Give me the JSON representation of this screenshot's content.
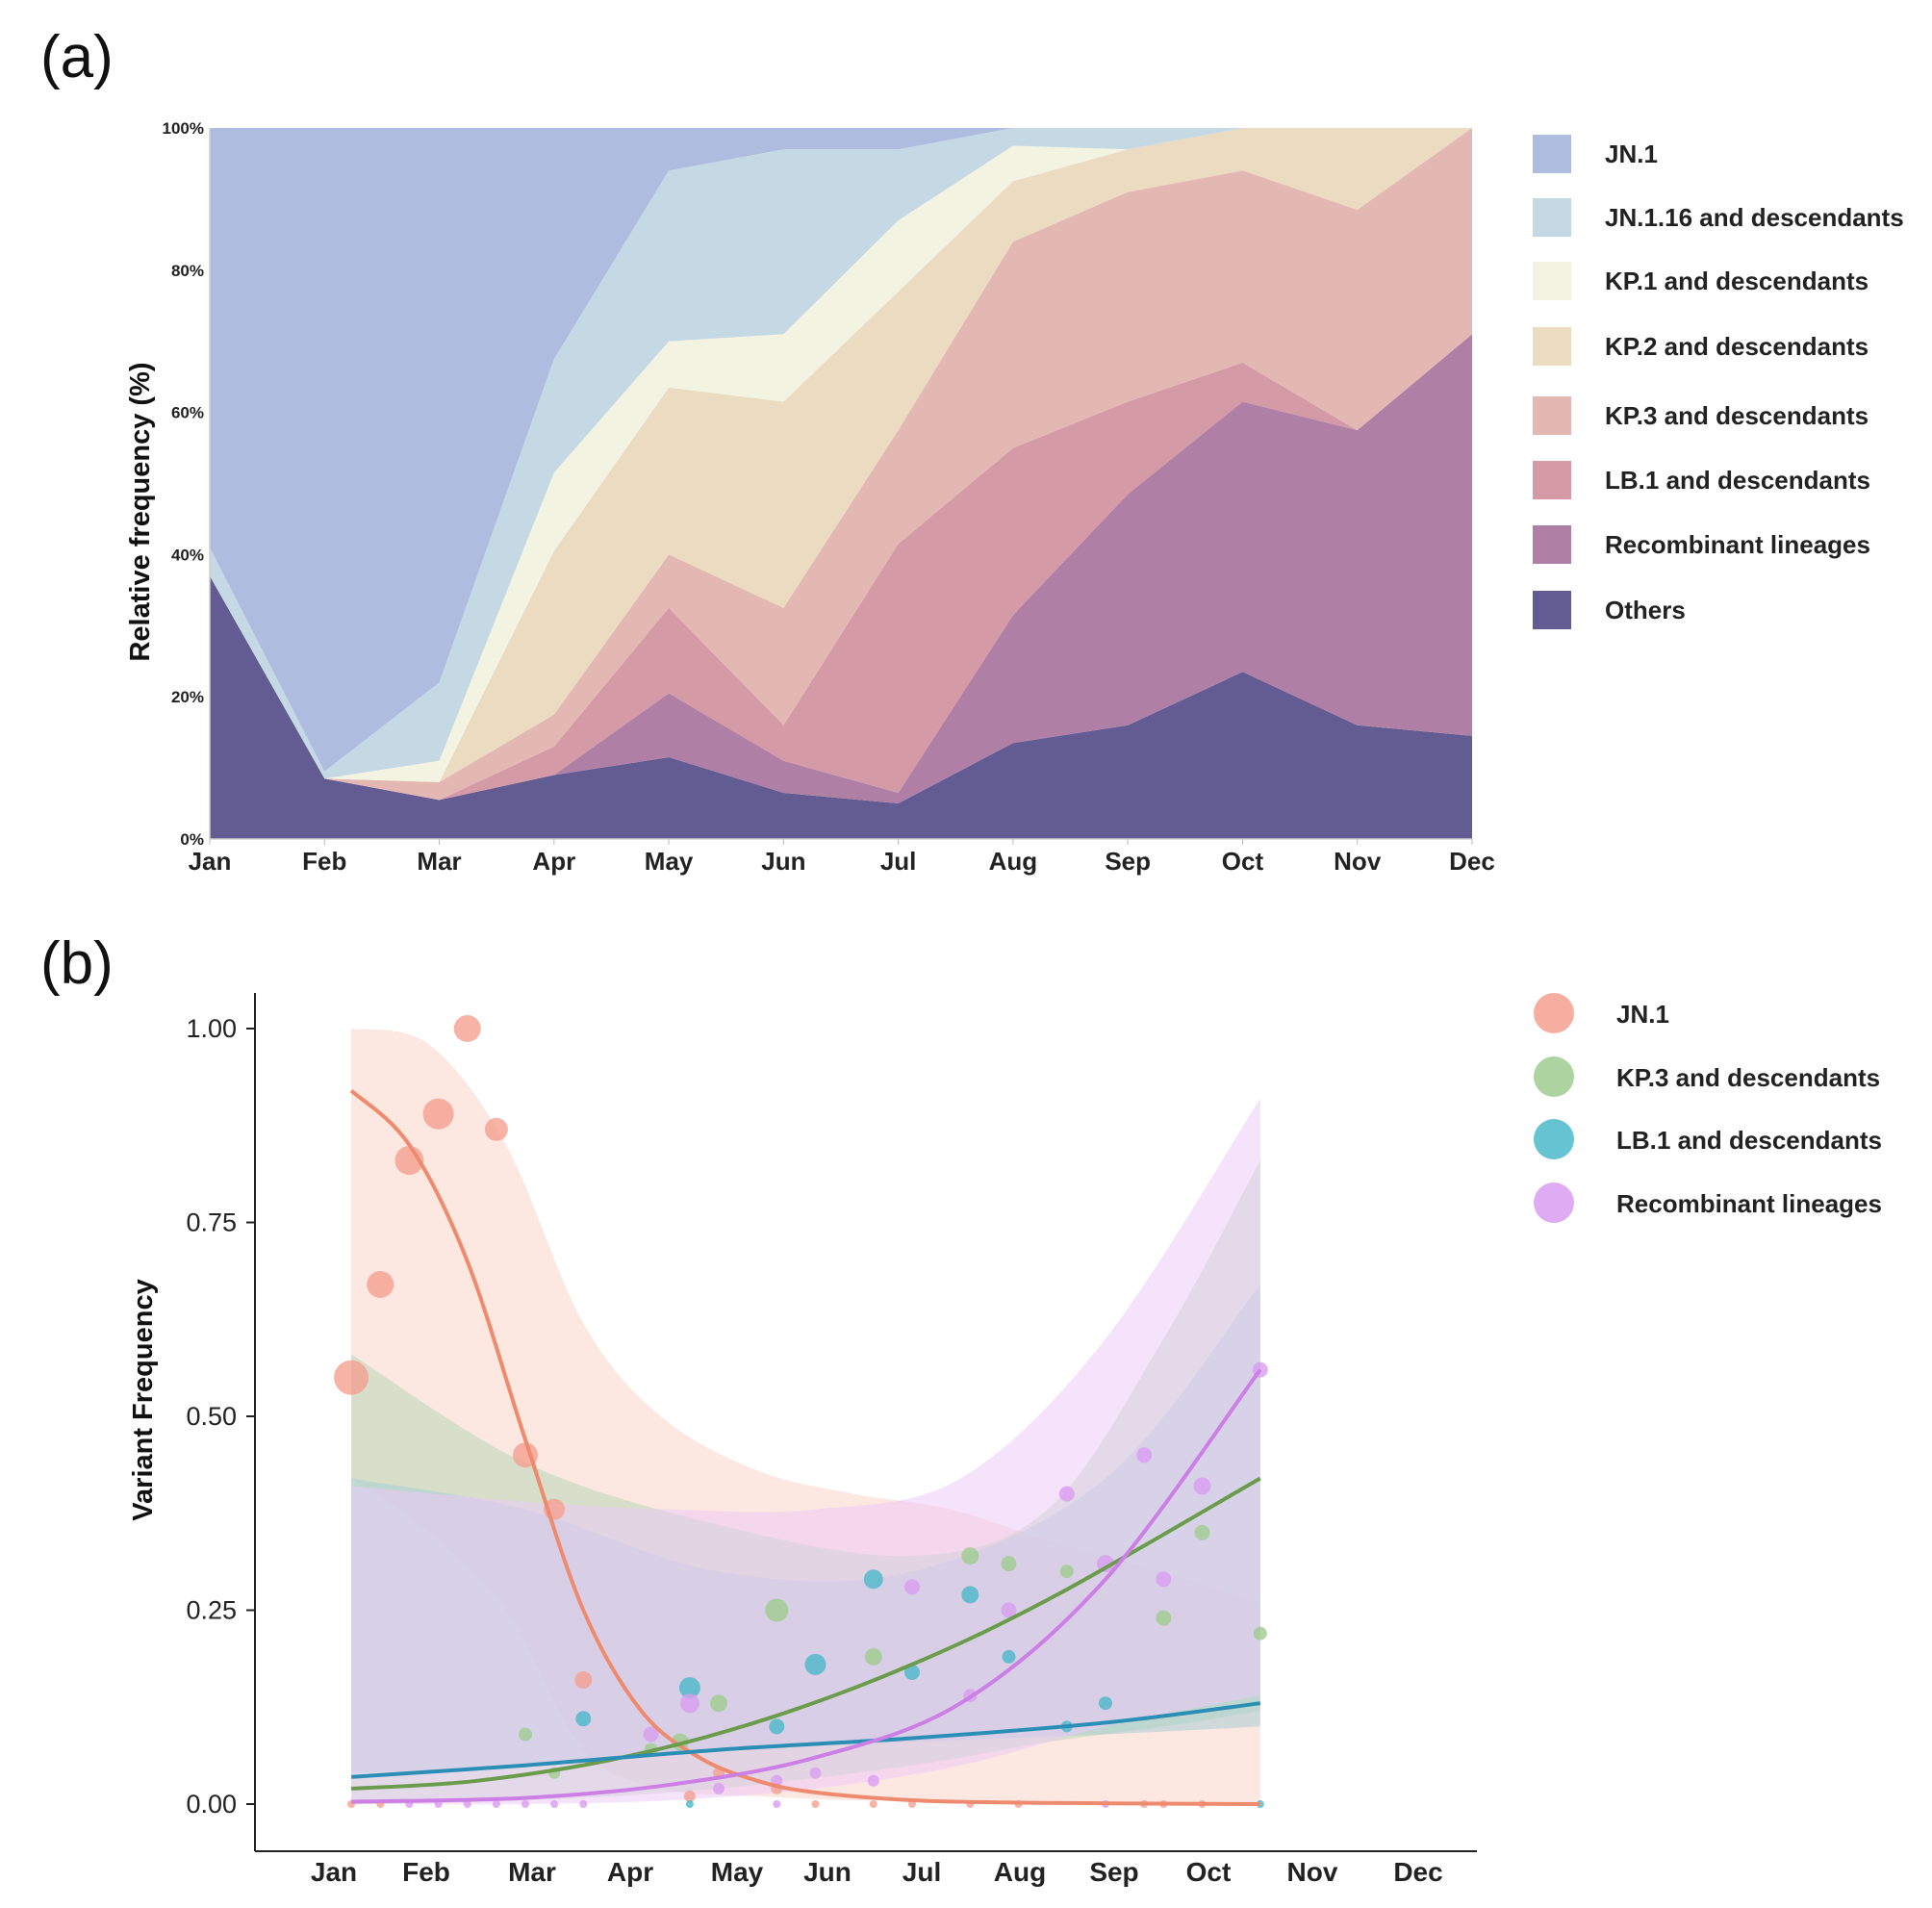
{
  "chart_data": [
    {
      "panel": "(a)",
      "type": "area",
      "stacked": true,
      "normalized": true,
      "ylabel": "Relative frequency (%)",
      "xlabel": "",
      "yticks": [
        "0%",
        "20%",
        "40%",
        "60%",
        "80%",
        "100%"
      ],
      "categories": [
        "Jan",
        "Feb",
        "Mar",
        "Apr",
        "May",
        "Jun",
        "Jul",
        "Aug",
        "Sep",
        "Oct",
        "Nov",
        "Dec"
      ],
      "ylim": [
        0,
        100
      ],
      "legend_position": "right",
      "series": [
        {
          "name": "Others",
          "color": "#625c93",
          "values": [
            37,
            8.5,
            5.5,
            9,
            11.5,
            6.5,
            5,
            13.5,
            16,
            23.5,
            16,
            14.5
          ]
        },
        {
          "name": "Recombinant lineages",
          "color": "#b07fa6",
          "values": [
            0,
            0,
            0,
            0,
            9,
            4.5,
            1.5,
            18,
            32.5,
            38,
            41.5,
            56.5
          ]
        },
        {
          "name": "LB.1 and descendants",
          "color": "#d49aa6",
          "values": [
            0,
            0,
            0,
            4,
            12,
            5,
            35,
            23.5,
            13,
            5.5,
            0,
            0
          ]
        },
        {
          "name": "KP.3 and descendants",
          "color": "#e3b8b3",
          "values": [
            0,
            0,
            2.5,
            4.5,
            7.5,
            16.5,
            16,
            29,
            29.5,
            27,
            31,
            29
          ]
        },
        {
          "name": "KP.2 and descendants",
          "color": "#eadbc1",
          "values": [
            0,
            0,
            0,
            23,
            23.5,
            29,
            19.5,
            8.5,
            6,
            6,
            11.5,
            0
          ]
        },
        {
          "name": "KP.1 and descendants",
          "color": "#f3f3e1",
          "values": [
            0,
            0,
            3,
            11,
            6.5,
            9.5,
            10,
            5,
            0,
            0,
            0,
            0
          ]
        },
        {
          "name": "JN.1.16 and descendants",
          "color": "#c5d9e5",
          "values": [
            4,
            1,
            11,
            16,
            24,
            26,
            10,
            2.5,
            3,
            0,
            0,
            0
          ]
        },
        {
          "name": "JN.1",
          "color": "#aebcdf",
          "values": [
            59,
            90.5,
            78,
            32.5,
            6,
            3,
            3,
            0,
            0,
            0,
            0,
            0
          ]
        }
      ]
    },
    {
      "panel": "(b)",
      "type": "scatter",
      "ylabel": "Variant Frequency",
      "xlabel": "",
      "yticks": [
        "0.00",
        "0.25",
        "0.50",
        "0.75",
        "1.00"
      ],
      "categories": [
        "Jan",
        "Feb",
        "Mar",
        "Apr",
        "May",
        "Jun",
        "Jul",
        "Aug",
        "Sep",
        "Oct",
        "Nov",
        "Dec"
      ],
      "ylim": [
        -0.05,
        1.05
      ],
      "xlim": [
        0.5,
        12.5
      ],
      "legend_position": "right",
      "series": [
        {
          "name": "JN.1",
          "color": "#f4a090",
          "line_color": "#ee8b6f",
          "band_color": "#f9d3c8",
          "points": [
            [
              1.2,
              0.55,
              18
            ],
            [
              1.5,
              0.67,
              14
            ],
            [
              1.8,
              0.83,
              15
            ],
            [
              2.1,
              0.89,
              16
            ],
            [
              2.4,
              1.0,
              14
            ],
            [
              2.7,
              0.87,
              12
            ],
            [
              3.0,
              0.45,
              13
            ],
            [
              3.3,
              0.38,
              11
            ],
            [
              3.6,
              0.16,
              9
            ],
            [
              4.7,
              0.01,
              6
            ],
            [
              5.0,
              0.04,
              6
            ],
            [
              5.6,
              0.02,
              6
            ],
            [
              6.0,
              0.0,
              4
            ],
            [
              6.6,
              0.0,
              4
            ],
            [
              7.0,
              0.0,
              4
            ],
            [
              7.6,
              0.0,
              4
            ],
            [
              8.1,
              0.0,
              4
            ]
          ],
          "fit": [
            [
              1.2,
              0.92
            ],
            [
              1.8,
              0.85
            ],
            [
              2.4,
              0.7
            ],
            [
              3.0,
              0.47
            ],
            [
              3.6,
              0.25
            ],
            [
              4.2,
              0.12
            ],
            [
              4.8,
              0.06
            ],
            [
              5.4,
              0.03
            ],
            [
              6.0,
              0.015
            ],
            [
              7.0,
              0.005
            ],
            [
              8.0,
              0.002
            ],
            [
              9.0,
              0.001
            ],
            [
              10.6,
              0.0
            ]
          ],
          "band_upper": [
            [
              1.2,
              1.0
            ],
            [
              2.0,
              0.98
            ],
            [
              2.8,
              0.85
            ],
            [
              3.6,
              0.62
            ],
            [
              4.4,
              0.5
            ],
            [
              5.4,
              0.43
            ],
            [
              6.4,
              0.4
            ],
            [
              7.4,
              0.38
            ],
            [
              8.4,
              0.34
            ],
            [
              9.6,
              0.3
            ],
            [
              10.6,
              0.26
            ]
          ],
          "band_lower": [
            [
              1.2,
              0.42
            ],
            [
              2.0,
              0.35
            ],
            [
              2.8,
              0.25
            ],
            [
              3.6,
              0.07
            ],
            [
              4.4,
              0.02
            ],
            [
              5.4,
              0.01
            ],
            [
              6.4,
              0.005
            ],
            [
              7.4,
              0.003
            ],
            [
              8.4,
              0.002
            ],
            [
              9.6,
              0.001
            ],
            [
              10.6,
              0.0
            ]
          ]
        },
        {
          "name": "KP.3 and descendants",
          "color": "#9fcc8f",
          "line_color": "#6a9c4c",
          "band_color": "#b8d8b8",
          "points": [
            [
              3.0,
              0.09,
              7
            ],
            [
              3.3,
              0.04,
              6
            ],
            [
              4.3,
              0.07,
              7
            ],
            [
              4.6,
              0.08,
              9
            ],
            [
              5.0,
              0.13,
              9
            ],
            [
              5.6,
              0.25,
              12
            ],
            [
              6.6,
              0.19,
              9
            ],
            [
              7.6,
              0.32,
              9
            ],
            [
              8.0,
              0.31,
              8
            ],
            [
              8.6,
              0.3,
              7
            ],
            [
              9.6,
              0.24,
              8
            ],
            [
              10.0,
              0.35,
              8
            ],
            [
              10.6,
              0.22,
              7
            ]
          ],
          "fit": [
            [
              1.2,
              0.02
            ],
            [
              2.5,
              0.03
            ],
            [
              4.0,
              0.06
            ],
            [
              5.5,
              0.11
            ],
            [
              7.0,
              0.18
            ],
            [
              8.5,
              0.27
            ],
            [
              10.6,
              0.42
            ]
          ],
          "band_upper": [
            [
              1.2,
              0.58
            ],
            [
              3.0,
              0.44
            ],
            [
              5.0,
              0.36
            ],
            [
              7.0,
              0.32
            ],
            [
              8.4,
              0.38
            ],
            [
              9.6,
              0.6
            ],
            [
              10.6,
              0.83
            ]
          ],
          "band_lower": [
            [
              1.2,
              0.0
            ],
            [
              3.0,
              0.005
            ],
            [
              5.0,
              0.02
            ],
            [
              7.0,
              0.05
            ],
            [
              8.4,
              0.08
            ],
            [
              9.6,
              0.1
            ],
            [
              10.6,
              0.12
            ]
          ]
        },
        {
          "name": "LB.1 and descendants",
          "color": "#4bb8c9",
          "line_color": "#2b8fb5",
          "band_color": "#a9cdd5",
          "points": [
            [
              3.6,
              0.11,
              8
            ],
            [
              4.7,
              0.15,
              11
            ],
            [
              5.6,
              0.1,
              8
            ],
            [
              6.0,
              0.18,
              11
            ],
            [
              6.6,
              0.29,
              10
            ],
            [
              7.0,
              0.17,
              8
            ],
            [
              7.6,
              0.27,
              9
            ],
            [
              8.0,
              0.19,
              7
            ],
            [
              8.6,
              0.1,
              6
            ],
            [
              9.0,
              0.13,
              7
            ],
            [
              10.6,
              0.0,
              4
            ]
          ],
          "fit": [
            [
              1.2,
              0.035
            ],
            [
              3.0,
              0.05
            ],
            [
              5.0,
              0.07
            ],
            [
              7.0,
              0.085
            ],
            [
              9.0,
              0.105
            ],
            [
              10.6,
              0.13
            ]
          ],
          "band_upper": [
            [
              1.2,
              0.42
            ],
            [
              3.0,
              0.38
            ],
            [
              5.0,
              0.3
            ],
            [
              7.0,
              0.3
            ],
            [
              9.0,
              0.42
            ],
            [
              10.6,
              0.67
            ]
          ],
          "band_lower": [
            [
              1.2,
              0.04
            ],
            [
              3.0,
              0.05
            ],
            [
              5.0,
              0.07
            ],
            [
              7.0,
              0.08
            ],
            [
              9.0,
              0.09
            ],
            [
              10.6,
              0.1
            ]
          ]
        },
        {
          "name": "Recombinant lineages",
          "color": "#d99cf0",
          "line_color": "#cc7fe5",
          "band_color": "#eccaf7",
          "points": [
            [
              4.3,
              0.09,
              8
            ],
            [
              4.7,
              0.13,
              10
            ],
            [
              5.0,
              0.02,
              6
            ],
            [
              5.6,
              0.03,
              6
            ],
            [
              6.0,
              0.04,
              6
            ],
            [
              6.6,
              0.03,
              6
            ],
            [
              7.0,
              0.28,
              8
            ],
            [
              7.6,
              0.14,
              7
            ],
            [
              8.0,
              0.25,
              8
            ],
            [
              8.6,
              0.4,
              8
            ],
            [
              9.0,
              0.31,
              9
            ],
            [
              9.4,
              0.45,
              8
            ],
            [
              9.6,
              0.29,
              8
            ],
            [
              10.0,
              0.41,
              9
            ],
            [
              10.6,
              0.56,
              8
            ]
          ],
          "fit": [
            [
              1.2,
              0.003
            ],
            [
              3.0,
              0.008
            ],
            [
              4.5,
              0.025
            ],
            [
              6.0,
              0.06
            ],
            [
              7.5,
              0.13
            ],
            [
              9.0,
              0.29
            ],
            [
              10.6,
              0.56
            ]
          ],
          "band_upper": [
            [
              1.2,
              0.41
            ],
            [
              3.0,
              0.39
            ],
            [
              4.5,
              0.38
            ],
            [
              6.0,
              0.38
            ],
            [
              7.5,
              0.42
            ],
            [
              9.0,
              0.6
            ],
            [
              10.6,
              0.91
            ]
          ],
          "band_lower": [
            [
              1.2,
              0.0
            ],
            [
              3.0,
              0.0
            ],
            [
              4.5,
              0.005
            ],
            [
              6.0,
              0.02
            ],
            [
              7.5,
              0.05
            ],
            [
              9.0,
              0.1
            ],
            [
              10.6,
              0.14
            ]
          ]
        }
      ],
      "zero_points": [
        [
          1.2,
          "#f4a090"
        ],
        [
          1.5,
          "#f4a090"
        ],
        [
          1.8,
          "#d99cf0"
        ],
        [
          2.1,
          "#d99cf0"
        ],
        [
          2.4,
          "#d99cf0"
        ],
        [
          2.7,
          "#d99cf0"
        ],
        [
          3.0,
          "#d99cf0"
        ],
        [
          3.3,
          "#d99cf0"
        ],
        [
          3.6,
          "#d99cf0"
        ],
        [
          4.7,
          "#4bb8c9"
        ],
        [
          5.6,
          "#d99cf0"
        ],
        [
          9.0,
          "#d99cf0"
        ],
        [
          9.4,
          "#f4a090"
        ],
        [
          9.6,
          "#f4a090"
        ],
        [
          10.0,
          "#f4a090"
        ]
      ]
    }
  ]
}
